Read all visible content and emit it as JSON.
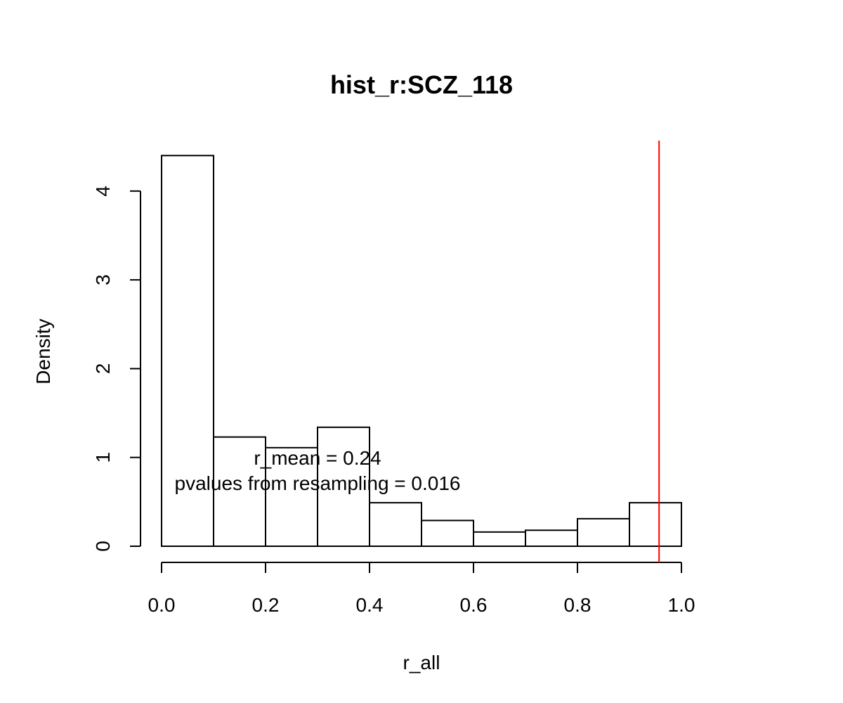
{
  "chart_data": {
    "type": "bar",
    "title": "hist_r:SCZ_118",
    "xlabel": "r_all",
    "ylabel": "Density",
    "xlim": [
      0.0,
      1.0
    ],
    "ylim": [
      0,
      4.4
    ],
    "x_ticks": [
      "0.0",
      "0.2",
      "0.4",
      "0.6",
      "0.8",
      "1.0"
    ],
    "y_ticks": [
      "0",
      "1",
      "2",
      "3",
      "4"
    ],
    "bin_edges": [
      0.0,
      0.1,
      0.2,
      0.3,
      0.4,
      0.5,
      0.6,
      0.7,
      0.8,
      0.9,
      1.0
    ],
    "values": [
      4.4,
      1.23,
      1.11,
      1.34,
      0.49,
      0.29,
      0.16,
      0.18,
      0.31,
      0.49
    ],
    "reference_line": {
      "x": 0.957,
      "color": "#ff0000"
    },
    "annotations": [
      "r_mean = 0.24",
      "pvalues from resampling = 0.016"
    ],
    "grid": false
  }
}
